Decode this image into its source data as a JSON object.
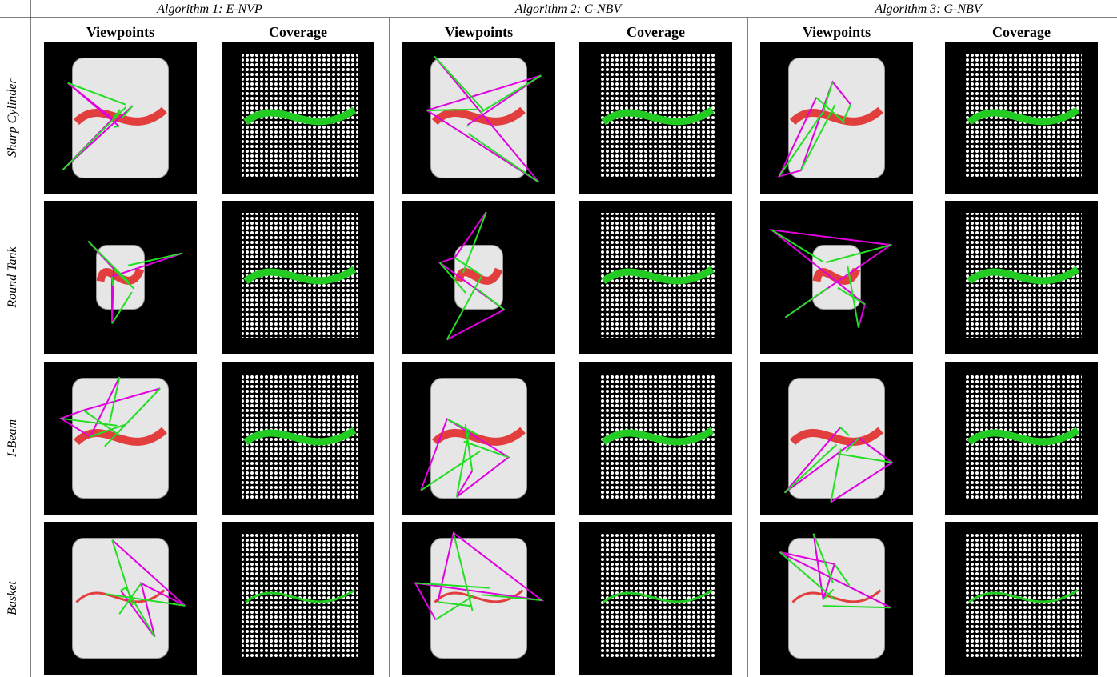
{
  "columns": [
    {
      "title": "Algorithm 1: E-NVP",
      "subheaders": [
        "Viewpoints",
        "Coverage"
      ]
    },
    {
      "title": "Algorithm 2: C-NBV",
      "subheaders": [
        "Viewpoints",
        "Coverage"
      ]
    },
    {
      "title": "Algorithm 3: G-NBV",
      "subheaders": [
        "Viewpoints",
        "Coverage"
      ]
    }
  ],
  "rows": [
    {
      "label": "Sharp Cylinder"
    },
    {
      "label": "Round Tank"
    },
    {
      "label": "I-Beam"
    },
    {
      "label": "Basket"
    }
  ]
}
